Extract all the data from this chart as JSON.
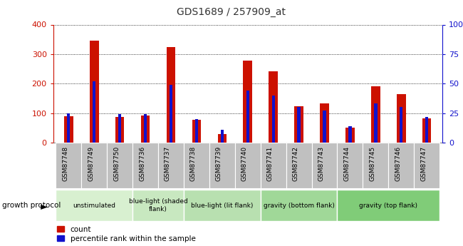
{
  "title": "GDS1689 / 257909_at",
  "samples": [
    "GSM87748",
    "GSM87749",
    "GSM87750",
    "GSM87736",
    "GSM87737",
    "GSM87738",
    "GSM87739",
    "GSM87740",
    "GSM87741",
    "GSM87742",
    "GSM87743",
    "GSM87744",
    "GSM87745",
    "GSM87746",
    "GSM87747"
  ],
  "counts": [
    90,
    345,
    88,
    93,
    323,
    78,
    30,
    278,
    242,
    124,
    132,
    50,
    190,
    165,
    82
  ],
  "percentiles": [
    25,
    52,
    24,
    24,
    49,
    20,
    11,
    44,
    40,
    30,
    27,
    14,
    33,
    30,
    22
  ],
  "groups": [
    {
      "label": "unstimulated",
      "start": 0,
      "end": 3,
      "color": "#d8f0d0"
    },
    {
      "label": "blue-light (shaded\nflank)",
      "start": 3,
      "end": 5,
      "color": "#c8e8c0"
    },
    {
      "label": "blue-light (lit flank)",
      "start": 5,
      "end": 8,
      "color": "#b8e0b0"
    },
    {
      "label": "gravity (bottom flank)",
      "start": 8,
      "end": 11,
      "color": "#a0d898"
    },
    {
      "label": "gravity (top flank)",
      "start": 11,
      "end": 15,
      "color": "#80cc78"
    }
  ],
  "ylim_left": [
    0,
    400
  ],
  "ylim_right": [
    0,
    100
  ],
  "yticks_left": [
    0,
    100,
    200,
    300,
    400
  ],
  "yticks_right": [
    0,
    25,
    50,
    75,
    100
  ],
  "bar_color_red": "#cc1100",
  "bar_color_blue": "#1111cc",
  "title_color": "#333333",
  "left_axis_color": "#cc1100",
  "right_axis_color": "#1111cc",
  "legend_count": "count",
  "legend_pct": "percentile rank within the sample",
  "growth_protocol_label": "growth protocol",
  "bg_xtick": "#c0c0c0"
}
